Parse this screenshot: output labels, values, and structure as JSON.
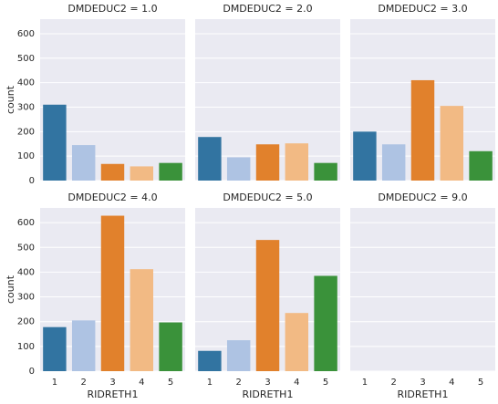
{
  "chart_data": [
    {
      "type": "bar",
      "title": "DMDEDUC2 = 1.0",
      "ylabel": "count",
      "values": [
        310,
        145,
        68,
        58,
        72
      ],
      "colors": [
        "#3274a1",
        "#aec3e3",
        "#e1812c",
        "#f2ba84",
        "#3a923a"
      ],
      "ylim": [
        0,
        659.4
      ],
      "yticks": [
        0,
        100,
        200,
        300,
        400,
        500,
        600
      ],
      "grid": true
    },
    {
      "type": "bar",
      "title": "DMDEDUC2 = 2.0",
      "values": [
        178,
        95,
        148,
        152,
        72
      ],
      "colors": [
        "#3274a1",
        "#aec3e3",
        "#e1812c",
        "#f2ba84",
        "#3a923a"
      ],
      "ylim": [
        0,
        659.4
      ],
      "yticks": [
        0,
        100,
        200,
        300,
        400,
        500,
        600
      ],
      "grid": true
    },
    {
      "type": "bar",
      "title": "DMDEDUC2 = 3.0",
      "values": [
        200,
        148,
        410,
        305,
        120
      ],
      "colors": [
        "#3274a1",
        "#aec3e3",
        "#e1812c",
        "#f2ba84",
        "#3a923a"
      ],
      "ylim": [
        0,
        659.4
      ],
      "yticks": [
        0,
        100,
        200,
        300,
        400,
        500,
        600
      ],
      "grid": true
    },
    {
      "type": "bar",
      "title": "DMDEDUC2 = 4.0",
      "ylabel": "count",
      "xlabel": "RIDRETH1",
      "categories": [
        "1",
        "2",
        "3",
        "4",
        "5"
      ],
      "values": [
        178,
        205,
        628,
        412,
        197
      ],
      "colors": [
        "#3274a1",
        "#aec3e3",
        "#e1812c",
        "#f2ba84",
        "#3a923a"
      ],
      "ylim": [
        0,
        659.4
      ],
      "yticks": [
        0,
        100,
        200,
        300,
        400,
        500,
        600
      ],
      "grid": true
    },
    {
      "type": "bar",
      "title": "DMDEDUC2 = 5.0",
      "xlabel": "RIDRETH1",
      "categories": [
        "1",
        "2",
        "3",
        "4",
        "5"
      ],
      "values": [
        82,
        125,
        530,
        235,
        385
      ],
      "colors": [
        "#3274a1",
        "#aec3e3",
        "#e1812c",
        "#f2ba84",
        "#3a923a"
      ],
      "ylim": [
        0,
        659.4
      ],
      "yticks": [
        0,
        100,
        200,
        300,
        400,
        500,
        600
      ],
      "grid": true
    },
    {
      "type": "bar",
      "title": "DMDEDUC2 = 9.0",
      "xlabel": "RIDRETH1",
      "categories": [
        "1",
        "2",
        "3",
        "4",
        "5"
      ],
      "values": [
        0,
        0,
        0,
        0,
        0
      ],
      "colors": [
        "#3274a1",
        "#aec3e3",
        "#e1812c",
        "#f2ba84",
        "#3a923a"
      ],
      "ylim": [
        0,
        659.4
      ],
      "yticks": [
        0,
        100,
        200,
        300,
        400,
        500,
        600
      ],
      "grid": true
    }
  ]
}
